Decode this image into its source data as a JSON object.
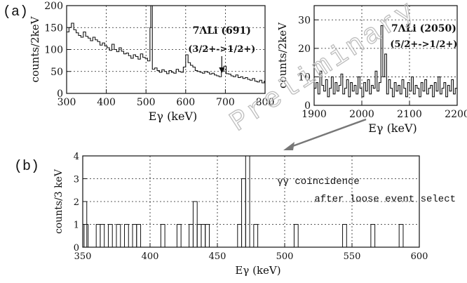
{
  "panel_labels": {
    "a": "(a)",
    "b": "(b)"
  },
  "watermark": "Preliminary",
  "chart_data": [
    {
      "id": "a-left",
      "type": "histogram",
      "xlabel": "Eγ (keV)",
      "ylabel": "counts/2keV",
      "xlim": [
        300,
        800
      ],
      "ylim": [
        0,
        200
      ],
      "xticks": [
        300,
        400,
        500,
        600,
        700,
        800
      ],
      "yticks": [
        0,
        50,
        100,
        150,
        200
      ],
      "grid": true,
      "annotation": {
        "line1": "7ΛLi (691)",
        "line2": "(3/2+->1/2+)",
        "arrow_x": 691
      },
      "x": [
        300,
        306,
        312,
        318,
        324,
        330,
        336,
        342,
        348,
        354,
        360,
        366,
        372,
        378,
        384,
        390,
        396,
        402,
        408,
        414,
        420,
        426,
        432,
        438,
        444,
        450,
        456,
        462,
        468,
        474,
        480,
        486,
        492,
        498,
        504,
        510,
        512,
        516,
        522,
        528,
        534,
        540,
        546,
        552,
        558,
        564,
        570,
        576,
        582,
        588,
        594,
        600,
        606,
        612,
        618,
        624,
        630,
        636,
        642,
        648,
        654,
        660,
        666,
        672,
        678,
        684,
        690,
        696,
        702,
        708,
        714,
        720,
        726,
        732,
        738,
        744,
        750,
        756,
        762,
        768,
        774,
        780,
        786,
        792,
        798
      ],
      "y": [
        140,
        150,
        160,
        145,
        138,
        132,
        128,
        140,
        130,
        126,
        120,
        128,
        122,
        118,
        110,
        115,
        108,
        104,
        98,
        112,
        100,
        95,
        104,
        96,
        90,
        92,
        86,
        80,
        88,
        84,
        78,
        90,
        82,
        80,
        74,
        150,
        200,
        55,
        58,
        52,
        48,
        54,
        50,
        45,
        52,
        48,
        46,
        55,
        50,
        48,
        60,
        88,
        70,
        64,
        60,
        52,
        50,
        48,
        46,
        50,
        48,
        44,
        46,
        42,
        40,
        38,
        50,
        62,
        45,
        44,
        40,
        38,
        42,
        36,
        38,
        34,
        36,
        32,
        30,
        34,
        28,
        26,
        30,
        24,
        28
      ]
    },
    {
      "id": "a-right",
      "type": "histogram",
      "xlabel": "Eγ (keV)",
      "ylabel": "counts/2keV",
      "xlim": [
        1900,
        2200
      ],
      "ylim": [
        0,
        35
      ],
      "xticks": [
        1900,
        2000,
        2100,
        2200
      ],
      "yticks": [
        0,
        10,
        20,
        30
      ],
      "grid": true,
      "annotation": {
        "line1": "7ΛLi (2050)",
        "line2": "(5/2+->1/2+)"
      },
      "x": [
        1900,
        1904,
        1908,
        1912,
        1916,
        1920,
        1924,
        1928,
        1932,
        1936,
        1940,
        1944,
        1948,
        1952,
        1956,
        1960,
        1964,
        1968,
        1972,
        1976,
        1980,
        1984,
        1988,
        1992,
        1996,
        2000,
        2004,
        2008,
        2012,
        2016,
        2020,
        2024,
        2028,
        2032,
        2036,
        2040,
        2044,
        2048,
        2052,
        2056,
        2060,
        2064,
        2068,
        2072,
        2076,
        2080,
        2084,
        2088,
        2092,
        2096,
        2100,
        2104,
        2108,
        2112,
        2116,
        2120,
        2124,
        2128,
        2132,
        2136,
        2140,
        2144,
        2148,
        2152,
        2156,
        2160,
        2164,
        2168,
        2172,
        2176,
        2180,
        2184,
        2188,
        2192,
        2196
      ],
      "y": [
        6,
        8,
        4,
        12,
        7,
        5,
        9,
        3,
        6,
        10,
        4,
        8,
        5,
        7,
        11,
        4,
        6,
        9,
        3,
        8,
        5,
        7,
        4,
        10,
        6,
        3,
        8,
        5,
        9,
        4,
        7,
        6,
        12,
        5,
        8,
        28,
        10,
        18,
        4,
        9,
        6,
        3,
        8,
        5,
        7,
        4,
        9,
        6,
        3,
        8,
        5,
        10,
        4,
        7,
        6,
        3,
        8,
        5,
        9,
        4,
        6,
        7,
        3,
        8,
        5,
        10,
        4,
        6,
        8,
        3,
        7,
        5,
        9,
        4,
        6
      ]
    },
    {
      "id": "b",
      "type": "histogram",
      "xlabel": "Eγ (keV)",
      "ylabel": "counts/3 keV",
      "xlim": [
        350,
        600
      ],
      "ylim": [
        0,
        4
      ],
      "xticks": [
        350,
        400,
        450,
        500,
        550,
        600
      ],
      "yticks": [
        0,
        1,
        2,
        3,
        4
      ],
      "grid": true,
      "annotation": {
        "line1": "γγ coincidence",
        "line2": "after loose event select"
      },
      "x": [
        350,
        351,
        360,
        363,
        369,
        375,
        381,
        387,
        390,
        408,
        420,
        429,
        432,
        435,
        438,
        441,
        465,
        468,
        471,
        477,
        507,
        543,
        564,
        585
      ],
      "y": [
        2,
        1,
        1,
        1,
        1,
        1,
        1,
        1,
        1,
        1,
        1,
        1,
        2,
        1,
        1,
        1,
        1,
        3,
        4,
        1,
        1,
        1,
        1,
        1
      ]
    }
  ]
}
